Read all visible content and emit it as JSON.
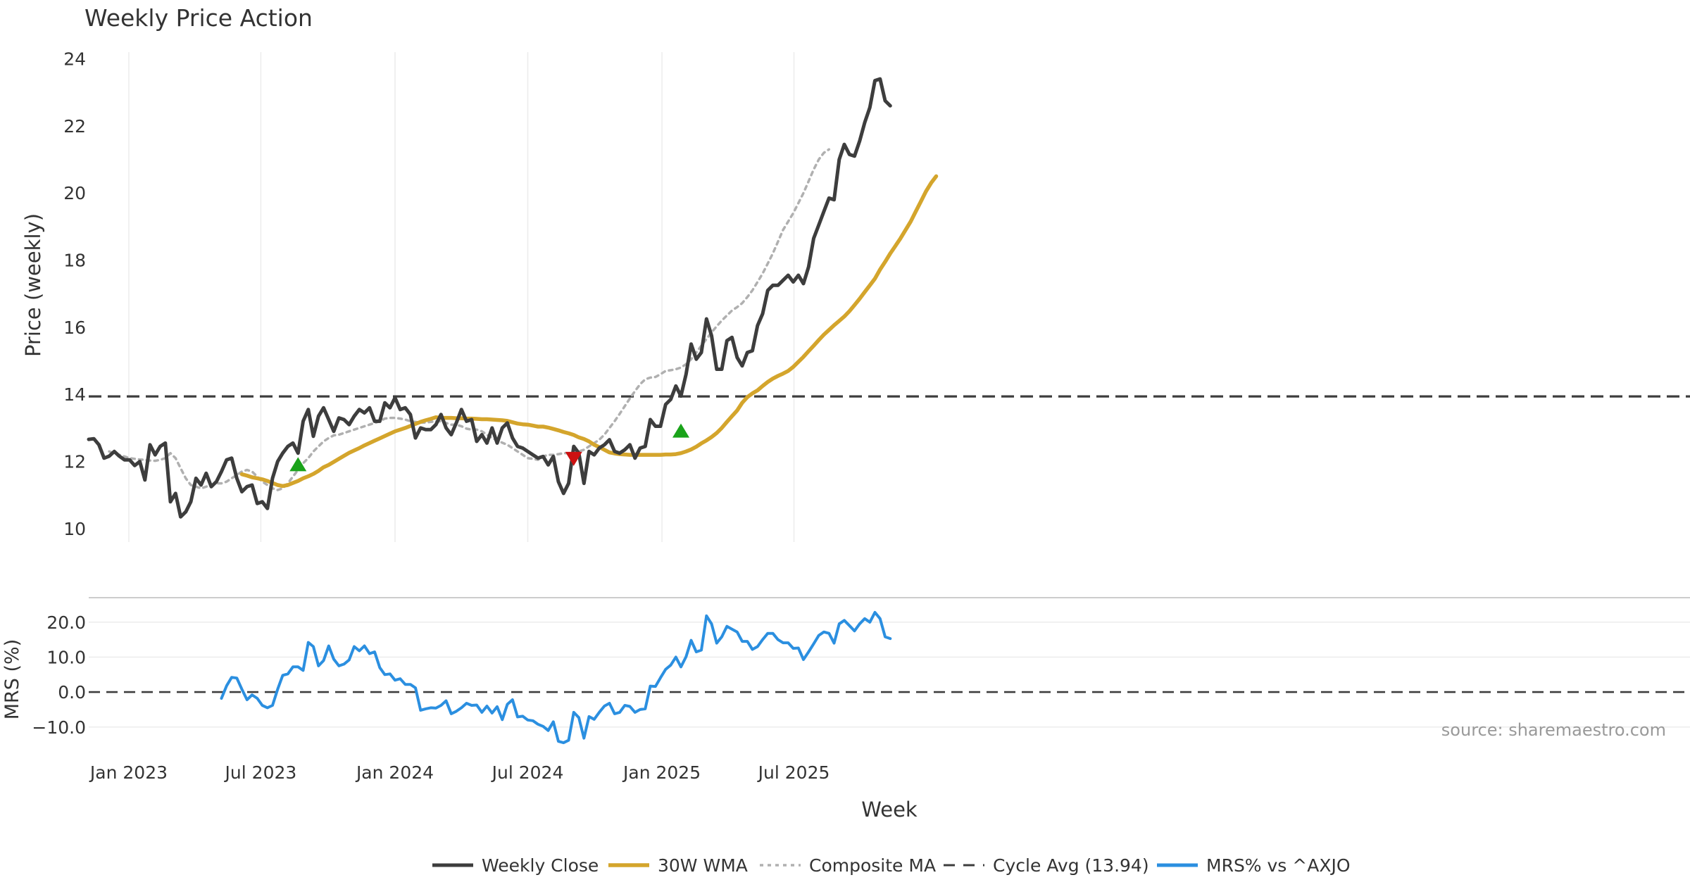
{
  "colors": {
    "close": "#3d3d3d",
    "wma": "#d4a52c",
    "composite": "#b0b0b0",
    "cycle": "#3d3d3d",
    "mrs": "#2b8fe0",
    "grid": "#ececec",
    "text": "#333333",
    "buy": "#1aa31a",
    "sell": "#cc1111",
    "source": "#999999"
  },
  "labels": {
    "x_ticks": [
      "Jan 2023",
      "Jul 2023",
      "Jan 2024",
      "Jul 2024",
      "Jan 2025",
      "Jul 2025"
    ],
    "legend": [
      "Weekly Close",
      "30W WMA",
      "Composite MA",
      "Cycle Avg (13.94)",
      "MRS% vs ^AXJO"
    ],
    "source": "source: sharemaestro.com"
  },
  "chart_data": [
    {
      "type": "line",
      "title": "Weekly Price Action",
      "xlabel": "Week",
      "ylabel": "Price (weekly)",
      "x_start": "2022-11-07",
      "ylim": [
        9.6,
        24.2
      ],
      "y_ticks": [
        "10",
        "12",
        "14",
        "16",
        "18",
        "20",
        "22",
        "24"
      ],
      "grid": "vertical",
      "cycle_avg": 13.94,
      "series": [
        {
          "name": "Weekly Close",
          "values": [
            12.66,
            12.68,
            12.5,
            12.1,
            12.16,
            12.3,
            12.16,
            12.05,
            12.05,
            11.88,
            12.0,
            11.45,
            12.5,
            12.2,
            12.45,
            12.55,
            10.8,
            11.05,
            10.35,
            10.5,
            10.8,
            11.5,
            11.3,
            11.65,
            11.25,
            11.4,
            11.7,
            12.05,
            12.1,
            11.5,
            11.1,
            11.25,
            11.3,
            10.75,
            10.8,
            10.6,
            11.5,
            12.0,
            12.25,
            12.45,
            12.55,
            12.25,
            13.2,
            13.55,
            12.75,
            13.35,
            13.6,
            13.25,
            12.9,
            13.3,
            13.25,
            13.1,
            13.35,
            13.55,
            13.45,
            13.6,
            13.2,
            13.2,
            13.75,
            13.6,
            13.9,
            13.55,
            13.6,
            13.4,
            12.7,
            13.0,
            12.95,
            12.95,
            13.1,
            13.4,
            13.0,
            12.8,
            13.15,
            13.55,
            13.2,
            13.25,
            12.6,
            12.8,
            12.55,
            13.0,
            12.55,
            13.0,
            13.15,
            12.7,
            12.45,
            12.4,
            12.3,
            12.2,
            12.1,
            12.15,
            11.9,
            12.15,
            11.4,
            11.05,
            11.35,
            12.45,
            12.25,
            11.35,
            12.3,
            12.2,
            12.4,
            12.5,
            12.65,
            12.3,
            12.25,
            12.35,
            12.5,
            12.1,
            12.4,
            12.45,
            13.25,
            13.05,
            13.05,
            13.7,
            13.85,
            14.25,
            13.95,
            14.6,
            15.5,
            15.05,
            15.25,
            16.25,
            15.75,
            14.75,
            14.75,
            15.6,
            15.7,
            15.1,
            14.85,
            15.25,
            15.3,
            16.05,
            16.4,
            17.1,
            17.25,
            17.25,
            17.4,
            17.55,
            17.35,
            17.55,
            17.3,
            17.8,
            18.65,
            19.05,
            19.45,
            19.85,
            19.8,
            21.0,
            21.45,
            21.15,
            21.1,
            21.55,
            22.1,
            22.55,
            23.35,
            23.4,
            22.75,
            22.6
          ]
        },
        {
          "name": "30W WMA",
          "start": 30,
          "values": [
            11.62,
            11.58,
            11.53,
            11.5,
            11.47,
            11.42,
            11.36,
            11.3,
            11.27,
            11.3,
            11.36,
            11.42,
            11.5,
            11.56,
            11.63,
            11.72,
            11.83,
            11.9,
            11.99,
            12.08,
            12.17,
            12.26,
            12.33,
            12.4,
            12.48,
            12.55,
            12.62,
            12.69,
            12.76,
            12.83,
            12.9,
            12.95,
            13.0,
            13.06,
            13.12,
            13.18,
            13.23,
            13.27,
            13.32,
            13.3,
            13.3,
            13.3,
            13.29,
            13.29,
            13.28,
            13.28,
            13.27,
            13.26,
            13.26,
            13.25,
            13.24,
            13.23,
            13.21,
            13.17,
            13.13,
            13.11,
            13.1,
            13.07,
            13.04,
            13.04,
            13.01,
            12.97,
            12.93,
            12.88,
            12.84,
            12.79,
            12.72,
            12.67,
            12.6,
            12.5,
            12.43,
            12.35,
            12.27,
            12.24,
            12.22,
            12.21,
            12.2,
            12.2,
            12.2,
            12.2,
            12.2,
            12.2,
            12.2,
            12.21,
            12.21,
            12.22,
            12.25,
            12.3,
            12.36,
            12.44,
            12.54,
            12.63,
            12.73,
            12.85,
            13.0,
            13.18,
            13.35,
            13.52,
            13.75,
            13.92,
            14.03,
            14.12,
            14.25,
            14.37,
            14.47,
            14.55,
            14.62,
            14.7,
            14.82,
            14.97,
            15.12,
            15.29,
            15.45,
            15.62,
            15.78,
            15.92,
            16.06,
            16.19,
            16.32,
            16.48,
            16.66,
            16.85,
            17.05,
            17.25,
            17.45,
            17.72,
            17.95,
            18.2,
            18.42,
            18.65,
            18.9,
            19.15,
            19.45,
            19.75,
            20.05,
            20.3,
            20.5
          ]
        },
        {
          "name": "Composite MA",
          "start": 4,
          "values": [
            12.3,
            12.25,
            12.2,
            12.15,
            12.1,
            12.08,
            12.06,
            12.05,
            12.03,
            12.02,
            12.05,
            12.1,
            12.25,
            12.1,
            11.8,
            11.5,
            11.3,
            11.25,
            11.2,
            11.25,
            11.3,
            11.35,
            11.35,
            11.4,
            11.5,
            11.6,
            11.7,
            11.75,
            11.7,
            11.55,
            11.4,
            11.3,
            11.2,
            11.15,
            11.2,
            11.35,
            11.55,
            11.75,
            11.95,
            12.1,
            12.3,
            12.45,
            12.6,
            12.7,
            12.78,
            12.8,
            12.85,
            12.9,
            12.95,
            13.0,
            13.05,
            13.1,
            13.15,
            13.2,
            13.28,
            13.3,
            13.3,
            13.28,
            13.25,
            13.2,
            13.18,
            13.16,
            13.16,
            13.18,
            13.2,
            13.2,
            13.15,
            13.1,
            13.1,
            13.05,
            12.98,
            12.95,
            12.95,
            12.9,
            12.8,
            12.7,
            12.63,
            12.56,
            12.5,
            12.4,
            12.3,
            12.2,
            12.1,
            12.08,
            12.05,
            12.15,
            12.2,
            12.2,
            12.22,
            12.25,
            12.25,
            12.25,
            12.3,
            12.35,
            12.45,
            12.55,
            12.65,
            12.8,
            13.0,
            13.2,
            13.42,
            13.65,
            13.88,
            14.1,
            14.3,
            14.45,
            14.5,
            14.52,
            14.6,
            14.7,
            14.72,
            14.75,
            14.8,
            14.9,
            15.05,
            15.25,
            15.45,
            15.65,
            15.85,
            16.03,
            16.2,
            16.35,
            16.5,
            16.6,
            16.72,
            16.9,
            17.1,
            17.35,
            17.6,
            17.9,
            18.2,
            18.55,
            18.9,
            19.15,
            19.4,
            19.7,
            20.0,
            20.35,
            20.7,
            21.0,
            21.2,
            21.3
          ]
        },
        {
          "name": "Cycle Avg (13.94)"
        }
      ],
      "markers": [
        {
          "x_index": 41,
          "y": 11.9,
          "kind": "buy"
        },
        {
          "x_index": 95,
          "y": 12.1,
          "kind": "sell"
        },
        {
          "x_index": 116,
          "y": 12.9,
          "kind": "buy"
        }
      ]
    },
    {
      "type": "line",
      "xlabel": "Week",
      "ylabel": "MRS (%)",
      "ylim": [
        -17.5,
        27
      ],
      "y_ticks": [
        "20.0",
        "10.0",
        "0.0",
        "−10.0"
      ],
      "zero_line": true,
      "series": [
        {
          "name": "MRS% vs ^AXJO",
          "start": 26,
          "values": [
            -1.8,
            1.8,
            4.2,
            4.0,
            0.8,
            -2.2,
            -0.8,
            -1.8,
            -3.8,
            -4.5,
            -3.8,
            0.8,
            4.8,
            5.2,
            7.2,
            7.2,
            6.2,
            14.2,
            13.0,
            7.5,
            9.0,
            13.2,
            9.4,
            7.5,
            8.0,
            9.2,
            13.0,
            11.8,
            13.2,
            11.0,
            11.5,
            7.0,
            5.0,
            5.2,
            3.4,
            3.8,
            2.2,
            2.2,
            1.2,
            -5.2,
            -4.8,
            -4.5,
            -4.6,
            -3.8,
            -2.5,
            -6.2,
            -5.5,
            -4.5,
            -3.2,
            -3.8,
            -3.7,
            -5.8,
            -4.0,
            -6.0,
            -4.2,
            -7.9,
            -3.5,
            -2.2,
            -7.1,
            -6.9,
            -8.0,
            -8.2,
            -9.2,
            -9.8,
            -11.0,
            -8.5,
            -14.1,
            -14.5,
            -13.8,
            -5.8,
            -7.3,
            -13.2,
            -7.0,
            -7.8,
            -5.8,
            -4.0,
            -3.2,
            -6.2,
            -5.8,
            -3.8,
            -4.1,
            -5.8,
            -5.0,
            -4.8,
            1.7,
            1.6,
            4.1,
            6.5,
            7.7,
            10.0,
            7.2,
            10.1,
            14.8,
            11.5,
            12.0,
            21.8,
            19.5,
            14.0,
            15.8,
            18.8,
            18.0,
            17.2,
            14.5,
            14.5,
            12.2,
            13.0,
            15.0,
            16.8,
            16.8,
            15.0,
            14.1,
            14.1,
            12.5,
            12.6,
            9.3,
            11.5,
            13.8,
            16.2,
            17.2,
            16.8,
            14.0,
            19.5,
            20.5,
            19.0,
            17.5,
            19.5,
            21.0,
            20.0,
            22.8,
            21.0,
            15.8,
            15.3
          ]
        }
      ]
    }
  ]
}
